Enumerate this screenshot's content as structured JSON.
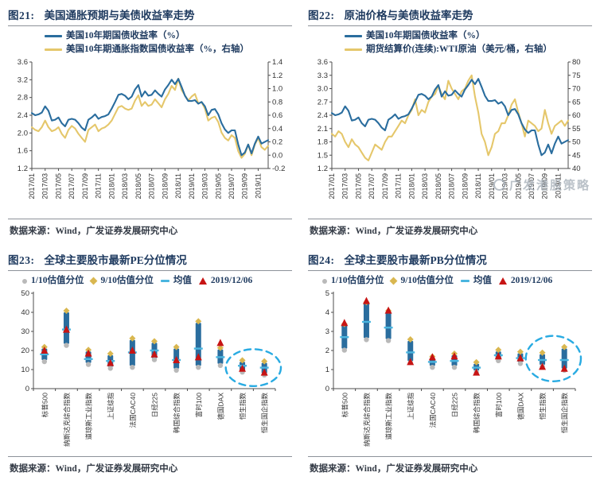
{
  "colors": {
    "title": "#1e3a5f",
    "axis": "#4d4d4d",
    "tick_text": "#333333",
    "blue_line": "#2a6d9e",
    "gold_line": "#e5c76b",
    "bar_blue": "#2a6d9e",
    "gray_marker": "#b9b9b9",
    "gold_marker": "#d9b750",
    "mean_dash": "#4ab5df",
    "red_marker": "#c71414",
    "highlight_circle": "#29abe2"
  },
  "watermark": {
    "text": "广发港股策略"
  },
  "charts": [
    {
      "fig_label": "图21:",
      "title": "美国通胀预期与美债收益率走势",
      "source": "数据来源：Wind，广发证券发展研究中心",
      "legend": [
        {
          "label": "美国10年期国债收益率（%）",
          "marker": "line",
          "color": "#2a6d9e"
        },
        {
          "label": "美国10年期通胀指数国债收益率（%，右轴）",
          "marker": "line",
          "color": "#e5c76b"
        }
      ],
      "chart_data": {
        "type": "line",
        "x_labels": [
          "2017/01",
          "2017/03",
          "2017/05",
          "2017/07",
          "2017/09",
          "2017/11",
          "2018/01",
          "2018/03",
          "2018/05",
          "2018/07",
          "2018/09",
          "2018/11",
          "2019/01",
          "2019/03",
          "2019/05",
          "2019/07",
          "2019/09",
          "2019/11"
        ],
        "left_axis": {
          "min": 1.2,
          "max": 3.6,
          "ticks": [
            "1.2",
            "1.6",
            "2.0",
            "2.4",
            "2.8",
            "3.2",
            "3.6"
          ]
        },
        "right_axis": {
          "min": -0.2,
          "max": 1.4,
          "ticks": [
            "-0.2",
            "0.0",
            "0.2",
            "0.4",
            "0.6",
            "0.8",
            "1.0",
            "1.2",
            "1.4"
          ]
        },
        "series": [
          {
            "name": "美国10年期通胀指数国债收益率（%，右轴）",
            "axis": "right",
            "color": "#e5c76b",
            "values": [
              0.42,
              0.38,
              0.36,
              0.42,
              0.52,
              0.42,
              0.36,
              0.38,
              0.42,
              0.32,
              0.26,
              0.38,
              0.44,
              0.4,
              0.32,
              0.26,
              0.2,
              0.38,
              0.42,
              0.46,
              0.36,
              0.4,
              0.42,
              0.46,
              0.52,
              0.62,
              0.72,
              0.74,
              0.7,
              0.68,
              0.7,
              0.82,
              0.9,
              0.74,
              0.8,
              0.74,
              0.76,
              0.84,
              0.78,
              0.72,
              0.84,
              0.92,
              1.04,
              0.98,
              1.15,
              0.98,
              0.9,
              0.82,
              0.88,
              0.92,
              0.78,
              0.8,
              0.7,
              0.52,
              0.56,
              0.58,
              0.5,
              0.34,
              0.26,
              0.22,
              0.3,
              0.26,
              0.06,
              -0.04,
              0.02,
              0.16,
              0.0,
              0.16,
              0.26,
              0.12,
              0.08,
              0.14
            ]
          },
          {
            "name": "美国10年期国债收益率（%）",
            "axis": "left",
            "color": "#2a6d9e",
            "values": [
              2.45,
              2.4,
              2.42,
              2.46,
              2.6,
              2.5,
              2.28,
              2.3,
              2.35,
              2.22,
              2.15,
              2.3,
              2.32,
              2.3,
              2.22,
              2.12,
              2.06,
              2.3,
              2.35,
              2.42,
              2.32,
              2.36,
              2.38,
              2.42,
              2.55,
              2.7,
              2.86,
              2.88,
              2.84,
              2.76,
              2.82,
              2.98,
              3.08,
              2.82,
              2.94,
              2.84,
              2.86,
              2.96,
              2.88,
              2.82,
              2.98,
              3.08,
              3.2,
              3.1,
              3.22,
              3.04,
              2.84,
              2.72,
              2.72,
              2.74,
              2.66,
              2.7,
              2.6,
              2.4,
              2.52,
              2.54,
              2.42,
              2.22,
              2.08,
              2.0,
              2.06,
              2.06,
              1.74,
              1.5,
              1.56,
              1.74,
              1.54,
              1.76,
              1.92,
              1.76,
              1.8,
              1.84
            ]
          }
        ]
      }
    },
    {
      "fig_label": "图22:",
      "title": "原油价格与美债收益率走势",
      "source": "数据来源：Wind，广发证券发展研究中心",
      "legend": [
        {
          "label": "美国10年期国债收益率（%）",
          "marker": "line",
          "color": "#2a6d9e"
        },
        {
          "label": "期货结算价(连续):WTI原油（美元/桶，右轴）",
          "marker": "line",
          "color": "#e5c76b"
        }
      ],
      "chart_data": {
        "type": "line",
        "x_labels": [
          "2017/01",
          "2017/03",
          "2017/05",
          "2017/07",
          "2017/09",
          "2017/11",
          "2018/01",
          "2018/03",
          "2018/05",
          "2018/07",
          "2018/09",
          "2018/11",
          "2019/01",
          "2019/03",
          "2019/05",
          "2019/07",
          "2019/09",
          "2019/11"
        ],
        "left_axis": {
          "min": 1.2,
          "max": 3.6,
          "ticks": [
            "1.2",
            "1.5",
            "1.8",
            "2.1",
            "2.4",
            "2.7",
            "3.0",
            "3.3",
            "3.6"
          ]
        },
        "right_axis": {
          "min": 40,
          "max": 80,
          "ticks": [
            "40",
            "45",
            "50",
            "55",
            "60",
            "65",
            "70",
            "75",
            "80"
          ]
        },
        "series": [
          {
            "name": "期货结算价(连续):WTI原油（美元/桶，右轴）",
            "axis": "right",
            "color": "#e5c76b",
            "values": [
              53,
              52,
              54,
              53,
              50,
              48,
              51,
              49,
              48,
              46,
              44,
              43,
              46,
              49,
              48,
              47,
              50,
              52,
              52,
              54,
              56,
              58,
              57,
              60,
              62,
              66,
              60,
              62,
              61,
              65,
              67,
              68,
              71,
              68,
              66,
              73,
              70,
              68,
              66,
              69,
              70,
              73,
              75,
              67,
              61,
              53,
              50,
              45,
              48,
              53,
              54,
              57,
              57,
              60,
              64,
              66,
              61,
              57,
              52,
              58,
              57,
              56,
              54,
              55,
              62,
              57,
              53,
              56,
              57,
              58,
              56,
              58
            ]
          },
          {
            "name": "美国10年期国债收益率（%）",
            "axis": "left",
            "color": "#2a6d9e",
            "values": [
              2.45,
              2.4,
              2.42,
              2.46,
              2.6,
              2.5,
              2.28,
              2.3,
              2.35,
              2.22,
              2.15,
              2.3,
              2.32,
              2.3,
              2.22,
              2.12,
              2.06,
              2.3,
              2.35,
              2.42,
              2.32,
              2.36,
              2.38,
              2.42,
              2.55,
              2.7,
              2.86,
              2.88,
              2.84,
              2.76,
              2.82,
              2.98,
              3.08,
              2.82,
              2.94,
              2.84,
              2.86,
              2.96,
              2.88,
              2.82,
              2.98,
              3.08,
              3.2,
              3.1,
              3.22,
              3.04,
              2.84,
              2.72,
              2.72,
              2.74,
              2.66,
              2.7,
              2.6,
              2.4,
              2.52,
              2.54,
              2.42,
              2.22,
              2.08,
              2.0,
              2.06,
              2.06,
              1.74,
              1.5,
              1.56,
              1.74,
              1.54,
              1.76,
              1.92,
              1.76,
              1.8,
              1.84
            ]
          }
        ]
      }
    },
    {
      "fig_label": "图23:",
      "title": "全球主要股市最新PE分位情况",
      "source": "数据来源：Wind，广发证券发展研究中心",
      "legend": [
        {
          "label": "1/10估值分位",
          "marker": "dot",
          "color": "#b9b9b9"
        },
        {
          "label": "9/10估值分位",
          "marker": "diamond",
          "color": "#d9b750"
        },
        {
          "label": "均值",
          "marker": "dash",
          "color": "#4ab5df"
        },
        {
          "label": "2019/12/06",
          "marker": "triangle",
          "color": "#c71414"
        }
      ],
      "chart_data": {
        "type": "scatter",
        "style": "range-bar",
        "categories": [
          "标普500",
          "纳斯达克综合指数",
          "道琼斯工业指数",
          "上证综指",
          "法国CAC40",
          "日经225",
          "韩国综合指数",
          "富时100",
          "德国DAX",
          "恒生指数",
          "恒生国企指数"
        ],
        "y_axis": {
          "min": 0,
          "max": 50,
          "ticks": [
            "0",
            "10",
            "20",
            "30",
            "40",
            "50"
          ]
        },
        "series": [
          {
            "name": "1/10估值分位",
            "role": "p10",
            "values": [
              15,
              23.5,
              13.5,
              11.5,
              12,
              16,
              10.5,
              12,
              13,
              9.5,
              8
            ]
          },
          {
            "name": "9/10估值分位",
            "role": "p90",
            "values": [
              21,
              40,
              19.5,
              17.5,
              25.5,
              24,
              21,
              34.5,
              20.5,
              14,
              13.5
            ]
          },
          {
            "name": "均值",
            "role": "mean",
            "values": [
              18,
              31,
              15.5,
              14.5,
              19,
              20,
              15,
              21,
              16.5,
              12,
              11
            ]
          },
          {
            "name": "2019/12/06",
            "role": "current",
            "values": [
              20,
              31,
              18.5,
              13.5,
              20,
              18,
              15,
              16.5,
              24,
              10.5,
              8.5
            ]
          }
        ],
        "highlight_indices": [
          9,
          10
        ]
      }
    },
    {
      "fig_label": "图24:",
      "title": "全球主要股市最新PB分位情况",
      "source": "数据来源：Wind，广发证券发展研究中心",
      "legend": [
        {
          "label": "1/10估值分位",
          "marker": "dot",
          "color": "#b9b9b9"
        },
        {
          "label": "9/10估值分位",
          "marker": "diamond",
          "color": "#d9b750"
        },
        {
          "label": "均值",
          "marker": "dash",
          "color": "#4ab5df"
        },
        {
          "label": "2019/12/06",
          "marker": "triangle",
          "color": "#c71414"
        }
      ],
      "chart_data": {
        "type": "scatter",
        "style": "range-bar",
        "categories": [
          "标普500",
          "纳斯达克综合指数",
          "道琼斯工业指数",
          "上证综指",
          "法国CAC40",
          "日经225",
          "韩国综合指数",
          "富时100",
          "德国DAX",
          "恒生指数",
          "恒生国企指数"
        ],
        "y_axis": {
          "min": 0,
          "max": 5,
          "ticks": [
            "0",
            "1",
            "2",
            "3",
            "4",
            "5"
          ]
        },
        "series": [
          {
            "name": "1/10估值分位",
            "role": "p10",
            "values": [
              2.1,
              2.65,
              2.6,
              1.45,
              1.2,
              1.2,
              0.95,
              1.55,
              1.4,
              1.25,
              1.05
            ]
          },
          {
            "name": "9/10估值分位",
            "role": "p90",
            "values": [
              3.3,
              4.45,
              4.0,
              2.5,
              1.6,
              1.75,
              1.3,
              1.95,
              1.85,
              1.8,
              2.1
            ]
          },
          {
            "name": "均值",
            "role": "mean",
            "values": [
              2.7,
              3.5,
              3.2,
              1.9,
              1.4,
              1.45,
              1.1,
              1.75,
              1.6,
              1.5,
              1.5
            ]
          },
          {
            "name": "2019/12/06",
            "role": "current",
            "values": [
              3.45,
              4.6,
              4.1,
              1.4,
              1.65,
              1.7,
              0.85,
              1.7,
              1.6,
              1.15,
              1.05
            ]
          }
        ],
        "highlight_indices": [
          9,
          10
        ]
      }
    }
  ]
}
